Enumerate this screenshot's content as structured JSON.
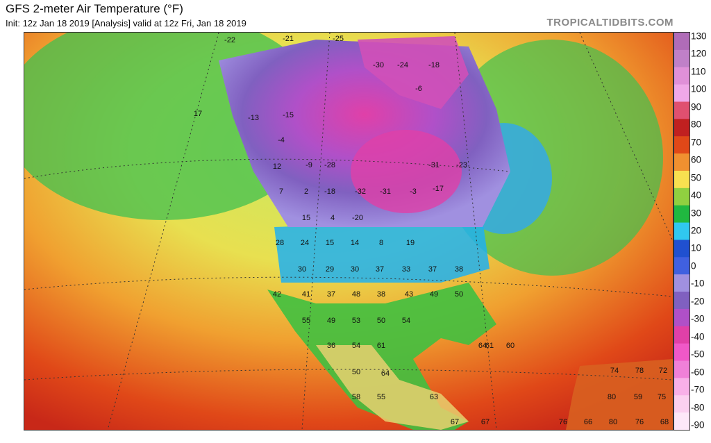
{
  "header": {
    "title": "GFS 2-meter Air Temperature (°F)",
    "subtitle": "Init: 12z Jan 18 2019   [Analysis]   valid at 12z Fri, Jan 18 2019",
    "brand": "TROPICALTIDBITS.COM"
  },
  "colorbar": {
    "ticks": [
      "130",
      "120",
      "110",
      "100",
      "90",
      "80",
      "70",
      "60",
      "50",
      "40",
      "30",
      "20",
      "10",
      "0",
      "-10",
      "-20",
      "-30",
      "-40",
      "-50",
      "-60",
      "-70",
      "-80",
      "-90"
    ],
    "colors": [
      "#b06cb8",
      "#c080c8",
      "#e090d8",
      "#f0a8e8",
      "#e05070",
      "#c02020",
      "#e04818",
      "#f09030",
      "#f8e050",
      "#90d040",
      "#20b840",
      "#30c8f0",
      "#2050d0",
      "#4060e0",
      "#a090e0",
      "#8060c0",
      "#b050c8",
      "#e040a8",
      "#f058c8",
      "#f080d8",
      "#f8b0e8",
      "#fbd0f0",
      "#fde8f8"
    ]
  },
  "map_labels": [
    {
      "text": "-22"
    },
    {
      "text": "-21"
    },
    {
      "text": "-25"
    },
    {
      "text": "-30"
    },
    {
      "text": "-24"
    },
    {
      "text": "-18"
    },
    {
      "text": "-6"
    },
    {
      "text": "17"
    },
    {
      "text": "-13"
    },
    {
      "text": "-15"
    },
    {
      "text": "-4"
    },
    {
      "text": "-9"
    },
    {
      "text": "-28"
    },
    {
      "text": "-31"
    },
    {
      "text": "-23"
    },
    {
      "text": "12"
    },
    {
      "text": "7"
    },
    {
      "text": "2"
    },
    {
      "text": "-18"
    },
    {
      "text": "-32"
    },
    {
      "text": "-31"
    },
    {
      "text": "-3"
    },
    {
      "text": "-17"
    },
    {
      "text": "15"
    },
    {
      "text": "4"
    },
    {
      "text": "-20"
    },
    {
      "text": "28"
    },
    {
      "text": "24"
    },
    {
      "text": "15"
    },
    {
      "text": "14"
    },
    {
      "text": "8"
    },
    {
      "text": "19"
    },
    {
      "text": "30"
    },
    {
      "text": "29"
    },
    {
      "text": "30"
    },
    {
      "text": "37"
    },
    {
      "text": "33"
    },
    {
      "text": "37"
    },
    {
      "text": "38"
    },
    {
      "text": "42"
    },
    {
      "text": "41"
    },
    {
      "text": "37"
    },
    {
      "text": "48"
    },
    {
      "text": "38"
    },
    {
      "text": "43"
    },
    {
      "text": "49"
    },
    {
      "text": "50"
    },
    {
      "text": "55"
    },
    {
      "text": "49"
    },
    {
      "text": "53"
    },
    {
      "text": "50"
    },
    {
      "text": "54"
    },
    {
      "text": "36"
    },
    {
      "text": "54"
    },
    {
      "text": "61"
    },
    {
      "text": "64"
    },
    {
      "text": "61"
    },
    {
      "text": "60"
    },
    {
      "text": "50"
    },
    {
      "text": "64"
    },
    {
      "text": "74"
    },
    {
      "text": "78"
    },
    {
      "text": "72"
    },
    {
      "text": "58"
    },
    {
      "text": "55"
    },
    {
      "text": "63"
    },
    {
      "text": "80"
    },
    {
      "text": "59"
    },
    {
      "text": "75"
    },
    {
      "text": "67"
    },
    {
      "text": "67"
    },
    {
      "text": "76"
    },
    {
      "text": "66"
    },
    {
      "text": "80"
    },
    {
      "text": "76"
    },
    {
      "text": "68"
    }
  ]
}
